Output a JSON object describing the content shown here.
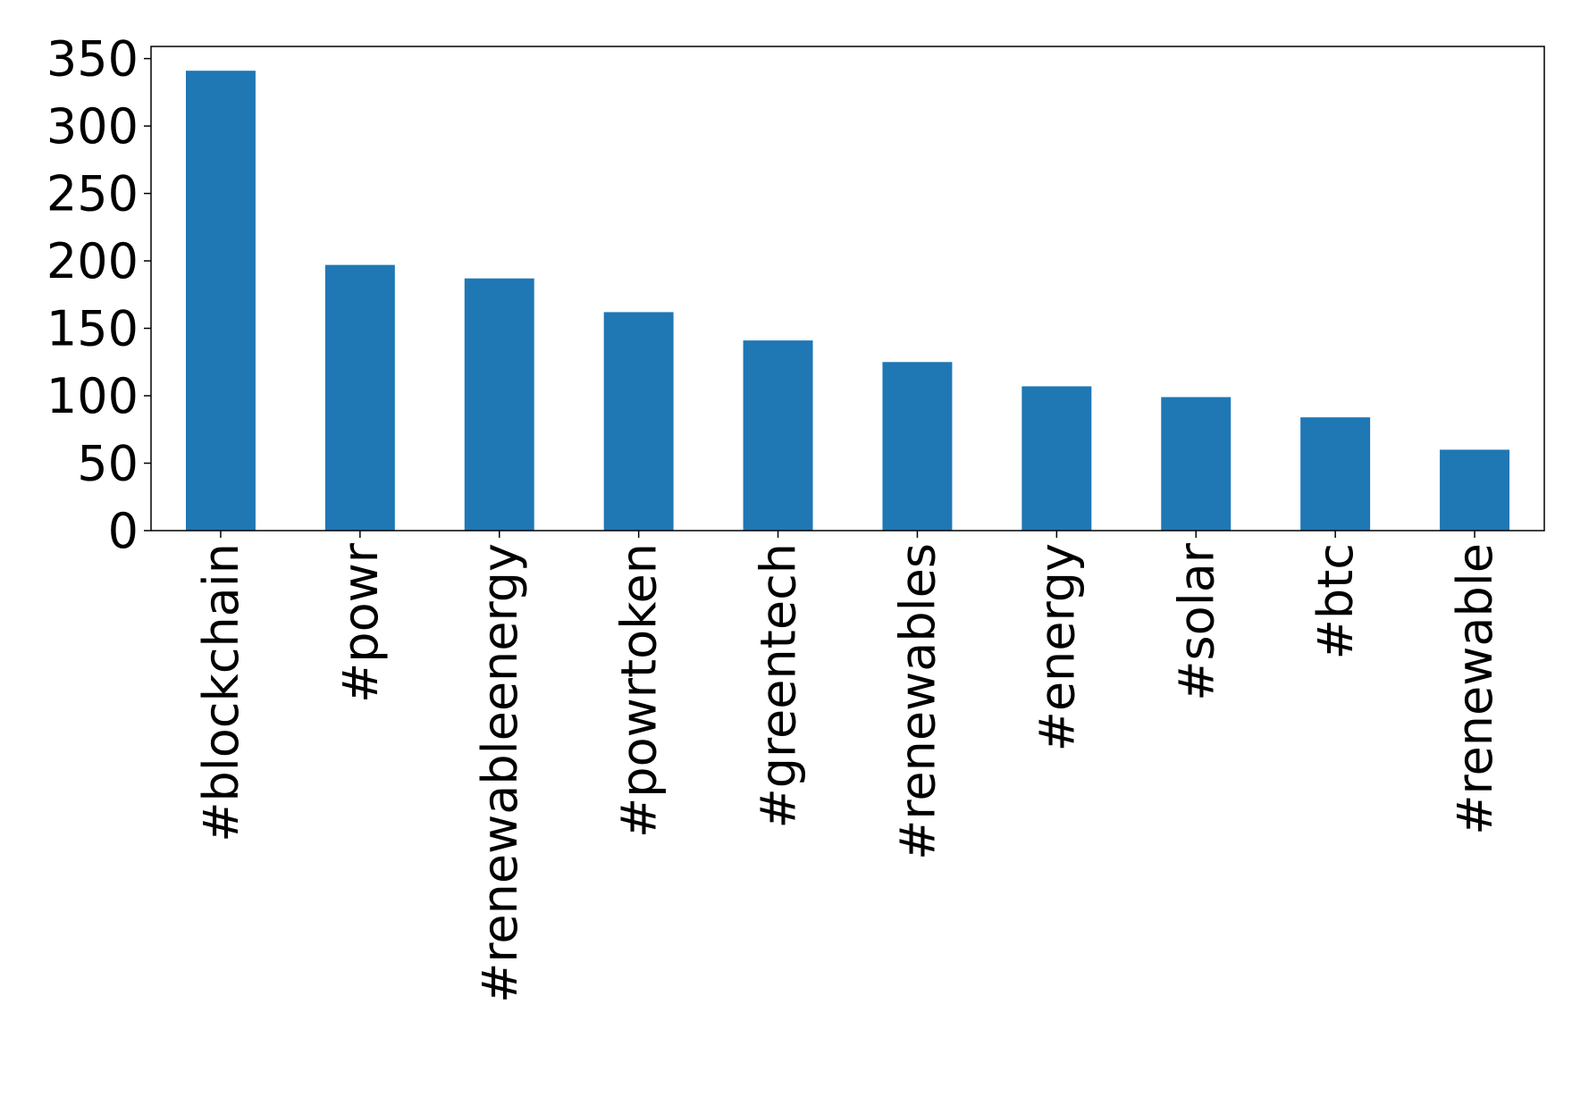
{
  "chart_data": {
    "type": "bar",
    "categories": [
      "#blockchain",
      "#powr",
      "#renewableenergy",
      "#powrtoken",
      "#greentech",
      "#renewables",
      "#energy",
      "#solar",
      "#btc",
      "#renewable"
    ],
    "values": [
      341,
      197,
      187,
      162,
      141,
      125,
      107,
      99,
      84,
      60
    ],
    "color": "#1f77b4",
    "ylim": [
      0,
      359
    ],
    "yticks": [
      0,
      50,
      100,
      150,
      200,
      250,
      300,
      350
    ],
    "grid": false
  }
}
